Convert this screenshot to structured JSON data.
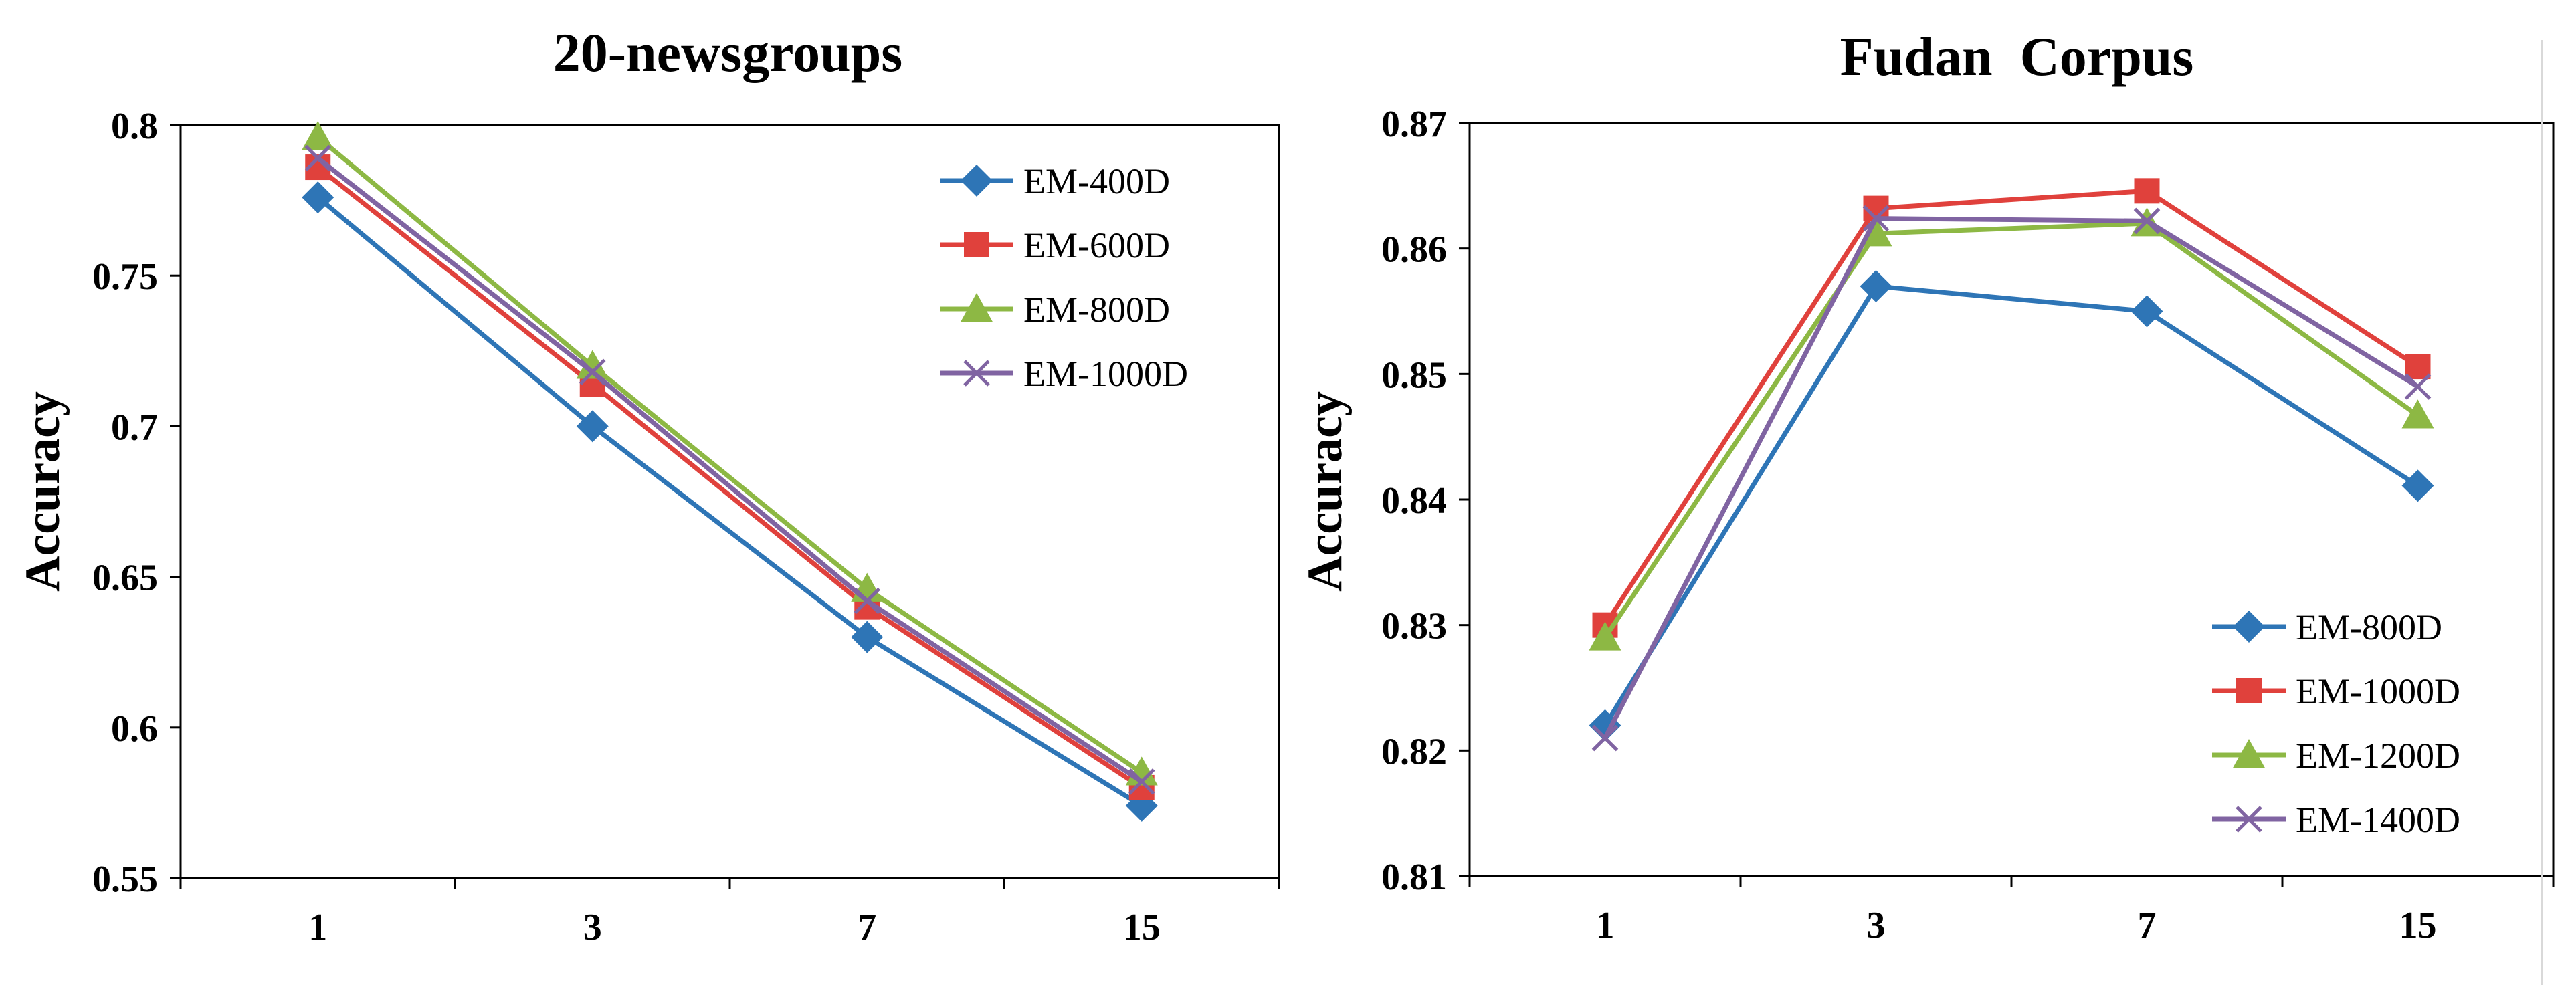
{
  "chart_data": [
    {
      "type": "line",
      "title": "20-newsgroups",
      "xlabel": "",
      "ylabel": "Accuracy",
      "categories": [
        "1",
        "3",
        "7",
        "15"
      ],
      "ylim": [
        0.55,
        0.8
      ],
      "yticks": [
        "0.55",
        "0.6",
        "0.65",
        "0.7",
        "0.75",
        "0.8"
      ],
      "grid": false,
      "legend_position": "top-right",
      "series": [
        {
          "name": "EM-400D",
          "marker": "diamond",
          "color": "#2E75B6",
          "values": [
            0.776,
            0.7,
            0.63,
            0.574
          ]
        },
        {
          "name": "EM-600D",
          "marker": "square",
          "color": "#E0413C",
          "values": [
            0.786,
            0.714,
            0.64,
            0.58
          ]
        },
        {
          "name": "EM-800D",
          "marker": "triangle",
          "color": "#8DB844",
          "values": [
            0.796,
            0.72,
            0.646,
            0.585
          ]
        },
        {
          "name": "EM-1000D",
          "marker": "x",
          "color": "#8064A2",
          "values": [
            0.789,
            0.718,
            0.642,
            0.582
          ]
        }
      ]
    },
    {
      "type": "line",
      "title": "Fudan  Corpus",
      "xlabel": "",
      "ylabel": "Accuracy",
      "categories": [
        "1",
        "3",
        "7",
        "15"
      ],
      "ylim": [
        0.81,
        0.87
      ],
      "yticks": [
        "0.81",
        "0.82",
        "0.83",
        "0.84",
        "0.85",
        "0.86",
        "0.87"
      ],
      "grid": false,
      "legend_position": "bottom-right",
      "series": [
        {
          "name": "EM-800D",
          "marker": "diamond",
          "color": "#2E75B6",
          "values": [
            0.822,
            0.857,
            0.855,
            0.8411
          ]
        },
        {
          "name": "EM-1000D",
          "marker": "square",
          "color": "#E0413C",
          "values": [
            0.83,
            0.8632,
            0.8646,
            0.8506
          ]
        },
        {
          "name": "EM-1200D",
          "marker": "triangle",
          "color": "#8DB844",
          "values": [
            0.829,
            0.8612,
            0.862,
            0.8467
          ]
        },
        {
          "name": "EM-1400D",
          "marker": "x",
          "color": "#8064A2",
          "values": [
            0.821,
            0.8624,
            0.8622,
            0.849
          ]
        }
      ]
    }
  ]
}
